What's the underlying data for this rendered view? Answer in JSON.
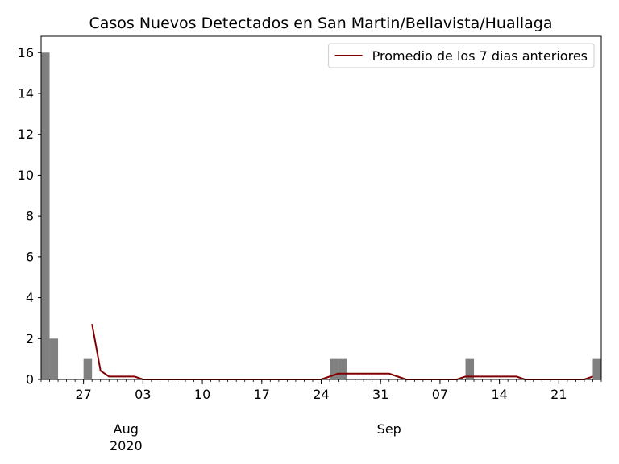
{
  "chart_data": {
    "type": "bar",
    "title": "Casos Nuevos Detectados en San Martin/Bellavista/Huallaga",
    "xlabel": "",
    "ylabel": "",
    "x_start": "2020-07-22",
    "x_end": "2020-09-26",
    "ylim": [
      0,
      16.8
    ],
    "y_ticks": [
      0,
      2,
      4,
      6,
      8,
      10,
      12,
      14,
      16
    ],
    "x_major_ticks": [
      {
        "date": "2020-07-27",
        "label": "27"
      },
      {
        "date": "2020-08-03",
        "label": "03"
      },
      {
        "date": "2020-08-10",
        "label": "10"
      },
      {
        "date": "2020-08-17",
        "label": "17"
      },
      {
        "date": "2020-08-24",
        "label": "24"
      },
      {
        "date": "2020-08-31",
        "label": "31"
      },
      {
        "date": "2020-09-07",
        "label": "07"
      },
      {
        "date": "2020-09-14",
        "label": "14"
      },
      {
        "date": "2020-09-21",
        "label": "21"
      }
    ],
    "month_labels": [
      {
        "date": "2020-08-01",
        "label": "Aug",
        "year": "2020"
      },
      {
        "date": "2020-09-01",
        "label": "Sep",
        "year": ""
      }
    ],
    "bars": [
      {
        "date": "2020-07-22",
        "value": 16
      },
      {
        "date": "2020-07-23",
        "value": 2
      },
      {
        "date": "2020-07-27",
        "value": 1
      },
      {
        "date": "2020-08-25",
        "value": 1
      },
      {
        "date": "2020-08-26",
        "value": 1
      },
      {
        "date": "2020-09-10",
        "value": 1
      },
      {
        "date": "2020-09-25",
        "value": 1
      }
    ],
    "bar_color": "#808080",
    "series": [
      {
        "name": "Promedio de los 7 dias anteriores",
        "color": "#800000",
        "points": [
          {
            "date": "2020-07-28",
            "value": 2.714
          },
          {
            "date": "2020-07-29",
            "value": 0.429
          },
          {
            "date": "2020-07-30",
            "value": 0.143
          },
          {
            "date": "2020-07-31",
            "value": 0.143
          },
          {
            "date": "2020-08-01",
            "value": 0.143
          },
          {
            "date": "2020-08-02",
            "value": 0.143
          },
          {
            "date": "2020-08-03",
            "value": 0
          },
          {
            "date": "2020-08-24",
            "value": 0
          },
          {
            "date": "2020-08-25",
            "value": 0.143
          },
          {
            "date": "2020-08-26",
            "value": 0.286
          },
          {
            "date": "2020-09-01",
            "value": 0.286
          },
          {
            "date": "2020-09-02",
            "value": 0.143
          },
          {
            "date": "2020-09-03",
            "value": 0
          },
          {
            "date": "2020-09-09",
            "value": 0
          },
          {
            "date": "2020-09-10",
            "value": 0.143
          },
          {
            "date": "2020-09-16",
            "value": 0.143
          },
          {
            "date": "2020-09-17",
            "value": 0
          },
          {
            "date": "2020-09-24",
            "value": 0
          },
          {
            "date": "2020-09-25",
            "value": 0.143
          }
        ]
      }
    ],
    "legend_position": "top-right",
    "grid": false
  }
}
